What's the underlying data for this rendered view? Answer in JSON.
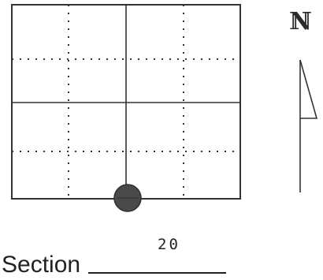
{
  "diagram": {
    "grid": {
      "rows": 4,
      "cols": 4,
      "marker": {
        "edge": "bottom",
        "col_line": 2,
        "color": "#4a4a4a",
        "icon": "filled-circle-marker-icon"
      },
      "line_color": "#333333"
    },
    "north_arrow": {
      "letter": "N",
      "icon": "north-arrow-icon"
    },
    "section": {
      "label": "Section",
      "number": "20"
    }
  }
}
